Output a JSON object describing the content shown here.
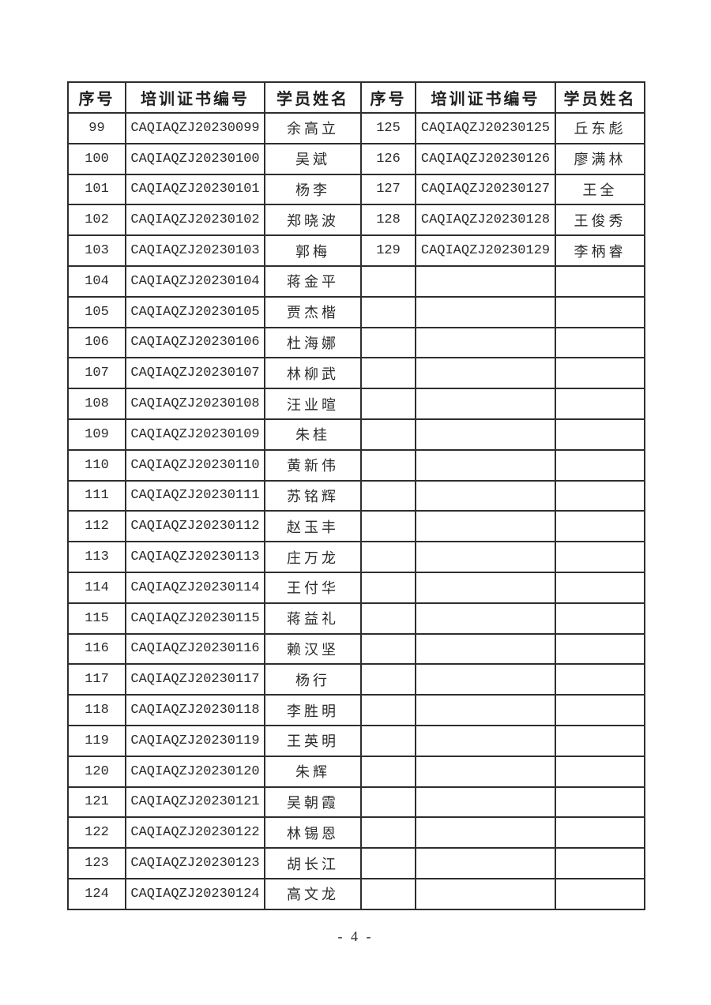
{
  "colors": {
    "background": "#ffffff",
    "text": "#2b2b2b",
    "border": "#2e2e2e"
  },
  "document": {
    "page_number": "- 4 -"
  },
  "table": {
    "headers": [
      "序号",
      "培训证书编号",
      "学员姓名",
      "序号",
      "培训证书编号",
      "学员姓名"
    ],
    "rows": [
      [
        "99",
        "CAQIAQZJ20230099",
        "余高立",
        "125",
        "CAQIAQZJ20230125",
        "丘东彪"
      ],
      [
        "100",
        "CAQIAQZJ20230100",
        "吴斌",
        "126",
        "CAQIAQZJ20230126",
        "廖满林"
      ],
      [
        "101",
        "CAQIAQZJ20230101",
        "杨李",
        "127",
        "CAQIAQZJ20230127",
        "王全"
      ],
      [
        "102",
        "CAQIAQZJ20230102",
        "郑晓波",
        "128",
        "CAQIAQZJ20230128",
        "王俊秀"
      ],
      [
        "103",
        "CAQIAQZJ20230103",
        "郭梅",
        "129",
        "CAQIAQZJ20230129",
        "李柄睿"
      ],
      [
        "104",
        "CAQIAQZJ20230104",
        "蒋金平",
        "",
        "",
        ""
      ],
      [
        "105",
        "CAQIAQZJ20230105",
        "贾杰楷",
        "",
        "",
        ""
      ],
      [
        "106",
        "CAQIAQZJ20230106",
        "杜海娜",
        "",
        "",
        ""
      ],
      [
        "107",
        "CAQIAQZJ20230107",
        "林柳武",
        "",
        "",
        ""
      ],
      [
        "108",
        "CAQIAQZJ20230108",
        "汪业暄",
        "",
        "",
        ""
      ],
      [
        "109",
        "CAQIAQZJ20230109",
        "朱桂",
        "",
        "",
        ""
      ],
      [
        "110",
        "CAQIAQZJ20230110",
        "黄新伟",
        "",
        "",
        ""
      ],
      [
        "111",
        "CAQIAQZJ20230111",
        "苏铭辉",
        "",
        "",
        ""
      ],
      [
        "112",
        "CAQIAQZJ20230112",
        "赵玉丰",
        "",
        "",
        ""
      ],
      [
        "113",
        "CAQIAQZJ20230113",
        "庄万龙",
        "",
        "",
        ""
      ],
      [
        "114",
        "CAQIAQZJ20230114",
        "王付华",
        "",
        "",
        ""
      ],
      [
        "115",
        "CAQIAQZJ20230115",
        "蒋益礼",
        "",
        "",
        ""
      ],
      [
        "116",
        "CAQIAQZJ20230116",
        "赖汉坚",
        "",
        "",
        ""
      ],
      [
        "117",
        "CAQIAQZJ20230117",
        "杨行",
        "",
        "",
        ""
      ],
      [
        "118",
        "CAQIAQZJ20230118",
        "李胜明",
        "",
        "",
        ""
      ],
      [
        "119",
        "CAQIAQZJ20230119",
        "王英明",
        "",
        "",
        ""
      ],
      [
        "120",
        "CAQIAQZJ20230120",
        "朱辉",
        "",
        "",
        ""
      ],
      [
        "121",
        "CAQIAQZJ20230121",
        "吴朝霞",
        "",
        "",
        ""
      ],
      [
        "122",
        "CAQIAQZJ20230122",
        "林锡恩",
        "",
        "",
        ""
      ],
      [
        "123",
        "CAQIAQZJ20230123",
        "胡长江",
        "",
        "",
        ""
      ],
      [
        "124",
        "CAQIAQZJ20230124",
        "高文龙",
        "",
        "",
        ""
      ]
    ]
  }
}
